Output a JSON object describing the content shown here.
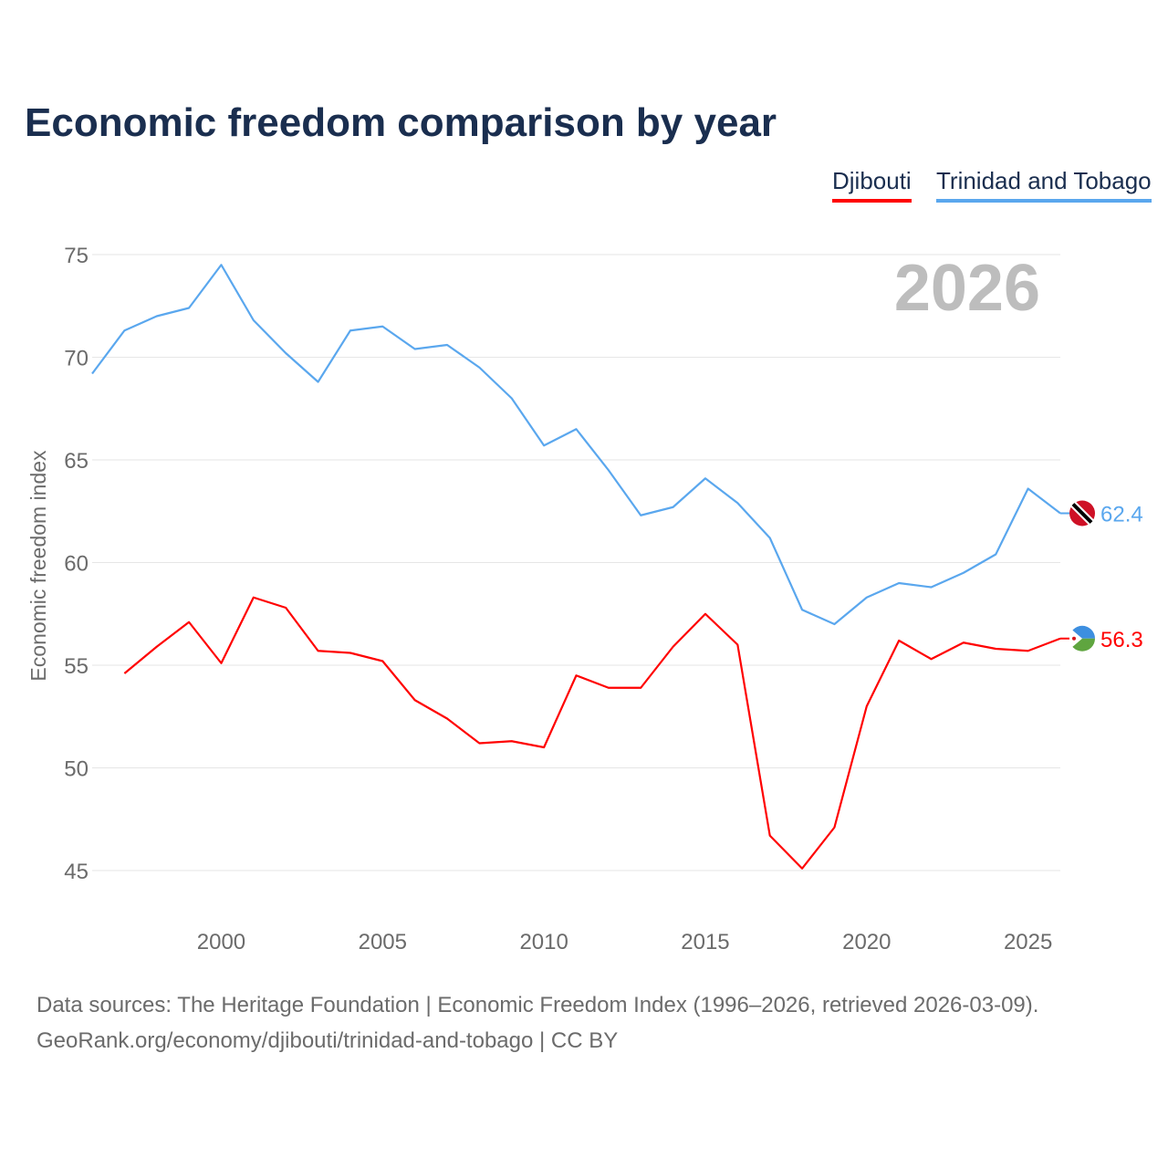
{
  "chart_data": {
    "type": "line",
    "title": "Economic freedom comparison by year",
    "ylabel": "Economic freedom index",
    "xlabel": "",
    "ylim": [
      43,
      77
    ],
    "xlim": [
      1996,
      2026
    ],
    "yticks": [
      45,
      50,
      55,
      60,
      65,
      70,
      75
    ],
    "xticks": [
      2000,
      2005,
      2010,
      2015,
      2020,
      2025
    ],
    "grid": true,
    "legend_position": "top-right",
    "year_label": "2026",
    "series": [
      {
        "name": "Djibouti",
        "color": "#ff0000",
        "end_label": "56.3",
        "x": [
          1997,
          1998,
          1999,
          2000,
          2001,
          2002,
          2003,
          2004,
          2005,
          2006,
          2007,
          2008,
          2009,
          2010,
          2011,
          2012,
          2013,
          2014,
          2015,
          2016,
          2017,
          2018,
          2019,
          2020,
          2021,
          2022,
          2023,
          2024,
          2025,
          2026
        ],
        "values": [
          54.6,
          55.9,
          57.1,
          55.1,
          58.3,
          57.8,
          55.7,
          55.6,
          55.2,
          53.3,
          52.4,
          51.2,
          51.3,
          51.0,
          54.5,
          53.9,
          53.9,
          55.9,
          57.5,
          56.0,
          46.7,
          45.1,
          47.1,
          53.0,
          56.2,
          55.3,
          56.1,
          55.8,
          55.7,
          56.3
        ]
      },
      {
        "name": "Trinidad and Tobago",
        "color": "#5aa7ee",
        "end_label": "62.4",
        "x": [
          1996,
          1997,
          1998,
          1999,
          2000,
          2001,
          2002,
          2003,
          2004,
          2005,
          2006,
          2007,
          2008,
          2009,
          2010,
          2011,
          2012,
          2013,
          2014,
          2015,
          2016,
          2017,
          2018,
          2019,
          2020,
          2021,
          2022,
          2023,
          2024,
          2025,
          2026
        ],
        "values": [
          69.2,
          71.3,
          72.0,
          72.4,
          74.5,
          71.8,
          70.2,
          68.8,
          71.3,
          71.5,
          70.4,
          70.6,
          69.5,
          68.0,
          65.7,
          66.5,
          64.5,
          62.3,
          62.7,
          64.1,
          62.9,
          61.2,
          57.7,
          57.0,
          58.3,
          59.0,
          58.8,
          59.5,
          60.4,
          63.6,
          62.4
        ]
      }
    ]
  },
  "footer": {
    "line1": "Data sources: The Heritage Foundation | Economic Freedom Index (1996–2026, retrieved 2026-03-09).",
    "line2": "GeoRank.org/economy/djibouti/trinidad-and-tobago | CC BY"
  }
}
